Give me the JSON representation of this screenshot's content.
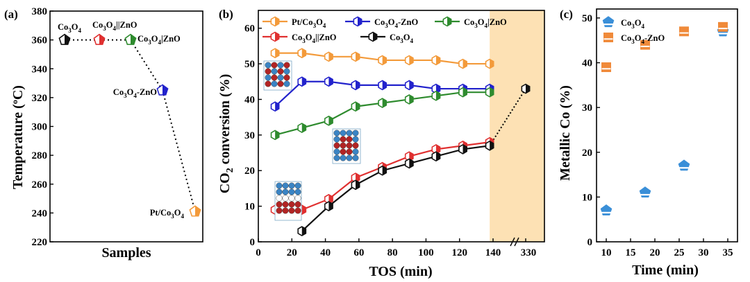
{
  "figure": {
    "panel_a_label": "(a)",
    "panel_b_label": "(b)",
    "panel_c_label": "(c)"
  },
  "chart_data": [
    {
      "panel": "a",
      "type": "scatter",
      "xlabel": "Samples",
      "ylabel": "Temperature (°C)",
      "ylim": [
        220,
        380
      ],
      "yticks": [
        220,
        240,
        260,
        280,
        300,
        320,
        340,
        360,
        380
      ],
      "grid": false,
      "points": [
        {
          "label": "Co3O4",
          "x": 1,
          "y": 360,
          "color": "#111111",
          "marker": "pentagon"
        },
        {
          "label": "Co3O4||ZnO",
          "x": 2,
          "y": 360,
          "color": "#e03030",
          "marker": "pentagon"
        },
        {
          "label": "Co3O4|ZnO",
          "x": 3,
          "y": 360,
          "color": "#2e8b2e",
          "marker": "pentagon"
        },
        {
          "label": "Co3O4-ZnO",
          "x": 4,
          "y": 325,
          "color": "#2222cc",
          "marker": "pentagon"
        },
        {
          "label": "Pt/Co3O4",
          "x": 5,
          "y": 241,
          "color": "#f39a3a",
          "marker": "pentagon"
        }
      ]
    },
    {
      "panel": "b",
      "type": "line",
      "xlabel": "TOS (min)",
      "ylabel": "CO2 conversion (%)",
      "xlim": [
        0,
        140
      ],
      "xticks": [
        0,
        20,
        40,
        60,
        80,
        100,
        120,
        140
      ],
      "extra_xtick": "330",
      "ylim": [
        0,
        65
      ],
      "yticks": [
        0,
        10,
        20,
        30,
        40,
        50,
        60
      ],
      "shaded_region": "138-330",
      "legend_position": "top",
      "grid": false,
      "series": [
        {
          "name": "Pt/Co3O4",
          "color": "#f39a3a",
          "x": [
            10,
            26,
            42,
            58,
            74,
            90,
            106,
            122,
            138
          ],
          "y": [
            53,
            53,
            52,
            52,
            51,
            51,
            51,
            50,
            50
          ]
        },
        {
          "name": "Co3O4-ZnO",
          "color": "#2222cc",
          "x": [
            10,
            26,
            42,
            58,
            74,
            90,
            106,
            122,
            138
          ],
          "y": [
            38,
            45,
            45,
            44,
            44,
            44,
            43,
            43,
            43
          ]
        },
        {
          "name": "Co3O4|ZnO",
          "color": "#2e8b2e",
          "x": [
            10,
            26,
            42,
            58,
            74,
            90,
            106,
            122,
            138
          ],
          "y": [
            30,
            32,
            34,
            38,
            39,
            40,
            41,
            42,
            42
          ]
        },
        {
          "name": "Co3O4||ZnO",
          "color": "#e03030",
          "x": [
            10,
            26,
            42,
            58,
            74,
            90,
            106,
            122,
            138
          ],
          "y": [
            9,
            9,
            12,
            18,
            21,
            24,
            26,
            27,
            28
          ]
        },
        {
          "name": "Co3O4",
          "color": "#111111",
          "x": [
            26,
            42,
            58,
            74,
            90,
            106,
            122,
            138
          ],
          "y": [
            3,
            10,
            16,
            20,
            22,
            24,
            26,
            27
          ],
          "extra_point": {
            "x": "330",
            "y": 43
          }
        }
      ]
    },
    {
      "panel": "c",
      "type": "scatter",
      "xlabel": "Time (min)",
      "ylabel": "Metallic Co (%)",
      "xlim": [
        8,
        37
      ],
      "xticks": [
        10,
        15,
        20,
        25,
        30,
        35
      ],
      "ylim": [
        0,
        52
      ],
      "yticks": [
        0,
        10,
        20,
        30,
        40,
        50
      ],
      "legend_position": "top-left",
      "grid": false,
      "series": [
        {
          "name": "Co3O4",
          "color": "#3a8fd8",
          "marker": "pentagon",
          "x": [
            10,
            18,
            26,
            34
          ],
          "y": [
            7,
            11,
            17,
            47
          ]
        },
        {
          "name": "Co3O4-ZnO",
          "color": "#f08a3a",
          "marker": "square",
          "x": [
            10,
            18,
            26,
            34
          ],
          "y": [
            39,
            44,
            47,
            48
          ]
        }
      ]
    }
  ]
}
